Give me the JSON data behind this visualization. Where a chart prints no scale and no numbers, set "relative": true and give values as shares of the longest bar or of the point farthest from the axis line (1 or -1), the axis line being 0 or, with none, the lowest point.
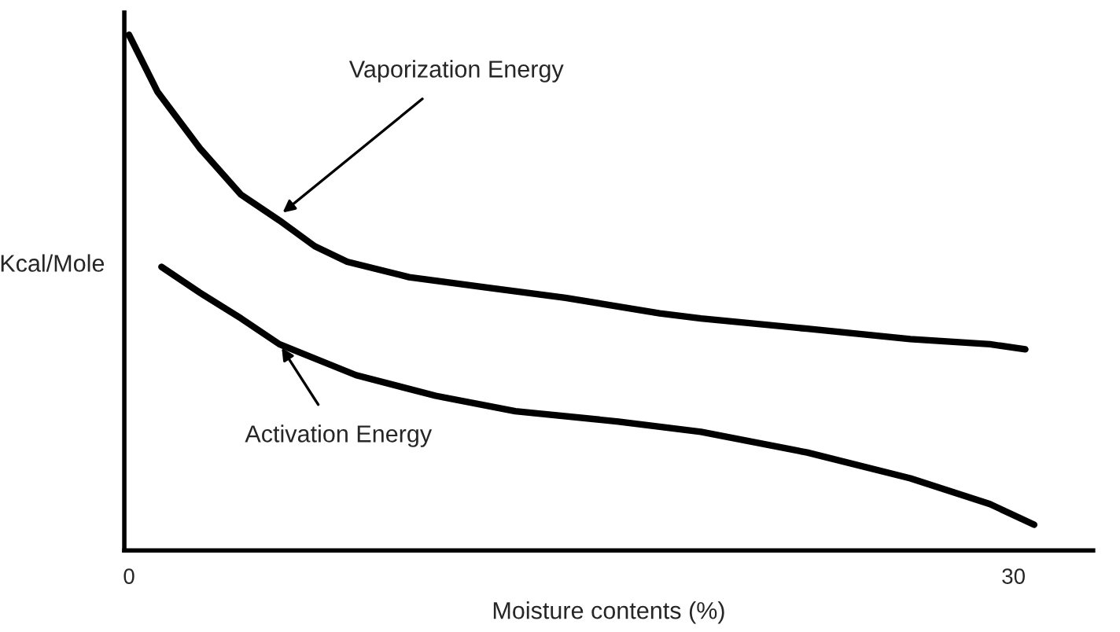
{
  "chart_data": {
    "type": "line",
    "relative": true,
    "xlabel": "Moisture contents (%)",
    "ylabel": "Kcal/Mole",
    "xlim": [
      -0.16,
      32.7
    ],
    "xticks": [
      0,
      30
    ],
    "grid": false,
    "legend": false,
    "marker": "none",
    "line_style": "solid",
    "series": [
      {
        "color": "#000000",
        "x": [
          0,
          0.96,
          2.4,
          3.8,
          5.1,
          6.3,
          7.4,
          9.5,
          12.1,
          14.8,
          18.0,
          19.4,
          23.0,
          26.5,
          29.2,
          30.4
        ],
        "values": [
          1.0,
          0.89,
          0.78,
          0.69,
          0.64,
          0.59,
          0.56,
          0.53,
          0.51,
          0.49,
          0.46,
          0.45,
          0.43,
          0.41,
          0.4,
          0.39
        ]
      },
      {
        "color": "#000000",
        "x": [
          1.1,
          2.4,
          3.8,
          5.1,
          7.7,
          10.4,
          13.1,
          16.6,
          19.4,
          23.0,
          26.5,
          29.2,
          30.7
        ],
        "values": [
          0.55,
          0.5,
          0.45,
          0.4,
          0.34,
          0.3,
          0.27,
          0.25,
          0.23,
          0.19,
          0.14,
          0.09,
          0.05
        ]
      }
    ],
    "annotations": [
      {
        "text": "Vaporization Energy",
        "x": 5.1,
        "y": 0.65
      },
      {
        "text": "Activation Energy",
        "x": 5.1,
        "y": 0.4
      }
    ]
  }
}
